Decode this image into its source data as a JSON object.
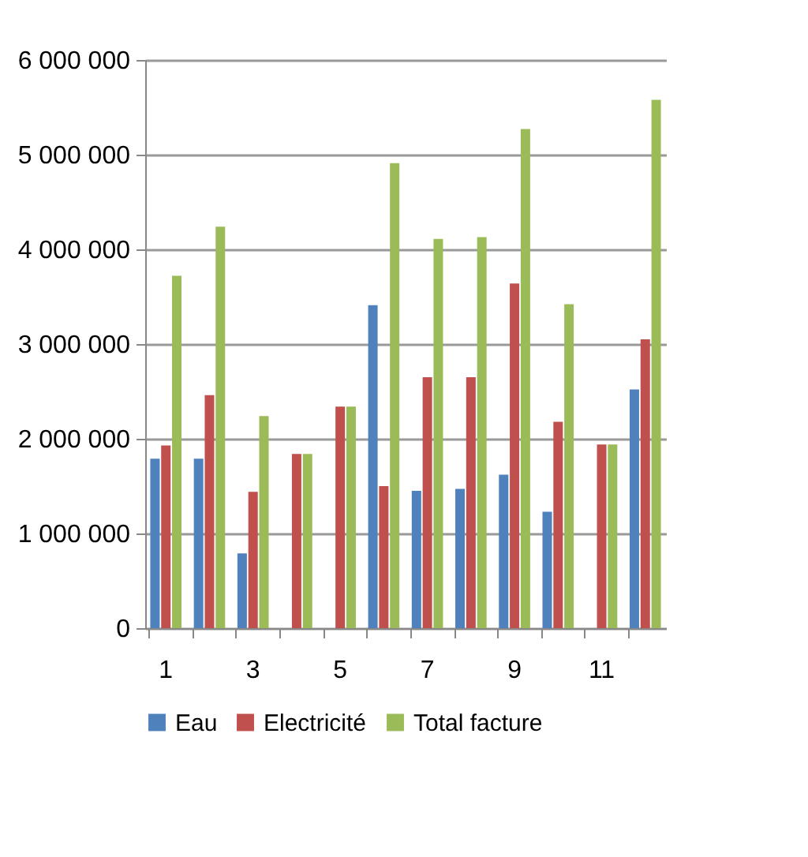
{
  "chart_data": {
    "type": "bar",
    "categories": [
      "1",
      null,
      "3",
      null,
      "5",
      null,
      "7",
      null,
      "9",
      null,
      "11",
      null
    ],
    "series": [
      {
        "name": "Eau",
        "color": "#4f81bd",
        "values": [
          1790000,
          1790000,
          790000,
          0,
          0,
          3410000,
          1450000,
          1470000,
          1620000,
          1230000,
          0,
          2520000
        ]
      },
      {
        "name": "Electricité",
        "color": "#c0504d",
        "values": [
          1930000,
          2460000,
          1440000,
          1840000,
          2340000,
          1500000,
          2650000,
          2650000,
          3640000,
          2180000,
          1940000,
          3050000
        ]
      },
      {
        "name": "Total facture",
        "color": "#9bbb59",
        "values": [
          3720000,
          4240000,
          2240000,
          1840000,
          2340000,
          4910000,
          4110000,
          4130000,
          5270000,
          3420000,
          1940000,
          5580000
        ]
      }
    ],
    "ylim": [
      0,
      6000000
    ],
    "yticks": [
      {
        "value": 0,
        "label": "0"
      },
      {
        "value": 1000000,
        "label": "1 000 000"
      },
      {
        "value": 2000000,
        "label": "2 000 000"
      },
      {
        "value": 3000000,
        "label": "3 000 000"
      },
      {
        "value": 4000000,
        "label": "4 000 000"
      },
      {
        "value": 5000000,
        "label": "5 000 000"
      },
      {
        "value": 6000000,
        "label": "6 000 000"
      }
    ],
    "grid": "y",
    "legend": "bottom"
  }
}
